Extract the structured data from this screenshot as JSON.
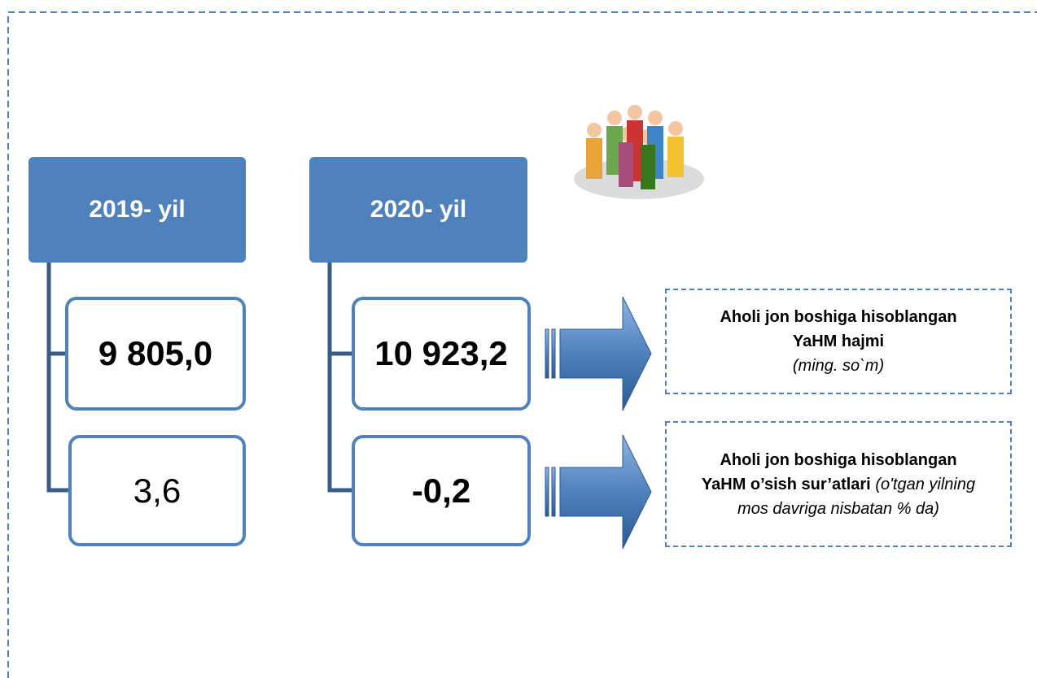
{
  "columns": [
    {
      "header": "2019- yil",
      "values": [
        "9 805,0",
        "3,6"
      ]
    },
    {
      "header": "2020- yil",
      "values": [
        "10 923,2",
        "-0,2"
      ]
    }
  ],
  "labels": [
    {
      "title": "Aholi jon boshiga hisoblangan YaHM hajmi",
      "note": "(ming. so`m)"
    },
    {
      "title": "Aholi jon boshiga hisoblangan YaHM o’sish sur’atlari",
      "note": "(o'tgan yilning mos davriga nisbatan % da)"
    }
  ]
}
